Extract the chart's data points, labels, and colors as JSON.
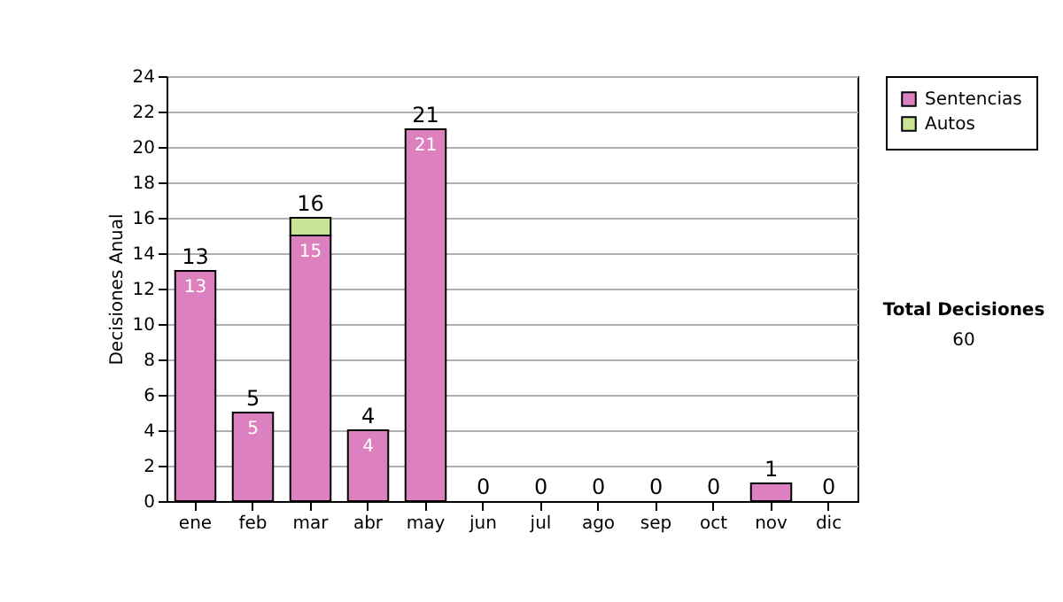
{
  "chart_data": {
    "type": "bar",
    "stacked": true,
    "ylabel": "Decisiones Anual",
    "categories": [
      "ene",
      "feb",
      "mar",
      "abr",
      "may",
      "jun",
      "jul",
      "ago",
      "sep",
      "oct",
      "nov",
      "dic"
    ],
    "series": [
      {
        "name": "Sentencias",
        "color": "#dd80c0",
        "values": [
          13,
          5,
          15,
          4,
          21,
          0,
          0,
          0,
          0,
          0,
          1,
          0
        ],
        "value_labels": [
          "13",
          "5",
          "15",
          "4",
          "21",
          null,
          null,
          null,
          null,
          null,
          null,
          null
        ]
      },
      {
        "name": "Autos",
        "color": "#c8e494",
        "values": [
          0,
          0,
          1,
          0,
          0,
          0,
          0,
          0,
          0,
          0,
          0,
          0
        ]
      }
    ],
    "totals": [
      "13",
      "5",
      "16",
      "4",
      "21",
      "0",
      "0",
      "0",
      "0",
      "0",
      "1",
      "0"
    ],
    "ylim": [
      0,
      24
    ],
    "yticks": [
      0,
      2,
      4,
      6,
      8,
      10,
      12,
      14,
      16,
      18,
      20,
      22,
      24
    ],
    "grid": "y",
    "legend": "right",
    "annotations": [
      "Total Decisiones",
      "60"
    ]
  }
}
